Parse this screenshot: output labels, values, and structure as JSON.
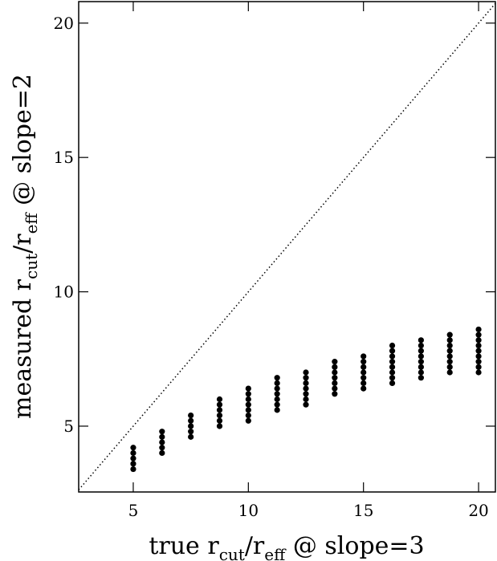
{
  "chart_data": {
    "type": "scatter",
    "xlabel": [
      "true r",
      "cut",
      "/r",
      "eff",
      " @ slope=3"
    ],
    "ylabel": [
      "measured r",
      "cut",
      "/r",
      "eff",
      " @ slope=2"
    ],
    "x": [
      5,
      5,
      5,
      5,
      5,
      6.25,
      6.25,
      6.25,
      6.25,
      6.25,
      7.5,
      7.5,
      7.5,
      7.5,
      7.5,
      8.75,
      8.75,
      8.75,
      8.75,
      8.75,
      8.75,
      10,
      10,
      10,
      10,
      10,
      10,
      10,
      11.25,
      11.25,
      11.25,
      11.25,
      11.25,
      11.25,
      11.25,
      12.5,
      12.5,
      12.5,
      12.5,
      12.5,
      12.5,
      12.5,
      13.75,
      13.75,
      13.75,
      13.75,
      13.75,
      13.75,
      13.75,
      15,
      15,
      15,
      15,
      15,
      15,
      15,
      16.25,
      16.25,
      16.25,
      16.25,
      16.25,
      16.25,
      16.25,
      16.25,
      17.5,
      17.5,
      17.5,
      17.5,
      17.5,
      17.5,
      17.5,
      17.5,
      18.75,
      18.75,
      18.75,
      18.75,
      18.75,
      18.75,
      18.75,
      18.75,
      20,
      20,
      20,
      20,
      20,
      20,
      20,
      20,
      20
    ],
    "y": [
      3.4,
      3.6,
      3.8,
      4.0,
      4.2,
      4.0,
      4.2,
      4.4,
      4.6,
      4.8,
      4.6,
      4.8,
      5.0,
      5.2,
      5.4,
      5.0,
      5.2,
      5.4,
      5.6,
      5.8,
      6.0,
      5.2,
      5.4,
      5.6,
      5.8,
      6.0,
      6.2,
      6.4,
      5.6,
      5.8,
      6.0,
      6.2,
      6.4,
      6.6,
      6.8,
      5.8,
      6.0,
      6.2,
      6.4,
      6.6,
      6.8,
      7.0,
      6.2,
      6.4,
      6.6,
      6.8,
      7.0,
      7.2,
      7.4,
      6.4,
      6.6,
      6.8,
      7.0,
      7.2,
      7.4,
      7.6,
      6.6,
      6.8,
      7.0,
      7.2,
      7.4,
      7.6,
      7.8,
      8.0,
      6.8,
      7.0,
      7.2,
      7.4,
      7.6,
      7.8,
      8.0,
      8.2,
      7.0,
      7.2,
      7.4,
      7.6,
      7.8,
      8.0,
      8.2,
      8.4,
      7.0,
      7.2,
      7.4,
      7.6,
      7.8,
      8.0,
      8.2,
      8.4,
      8.6
    ],
    "color": "#000000",
    "xlim": [
      2.63,
      20.73
    ],
    "ylim": [
      2.55,
      20.8
    ],
    "xticks": [
      5,
      10,
      15,
      20
    ],
    "yticks": [
      5,
      10,
      15,
      20
    ],
    "diagonal": true
  }
}
